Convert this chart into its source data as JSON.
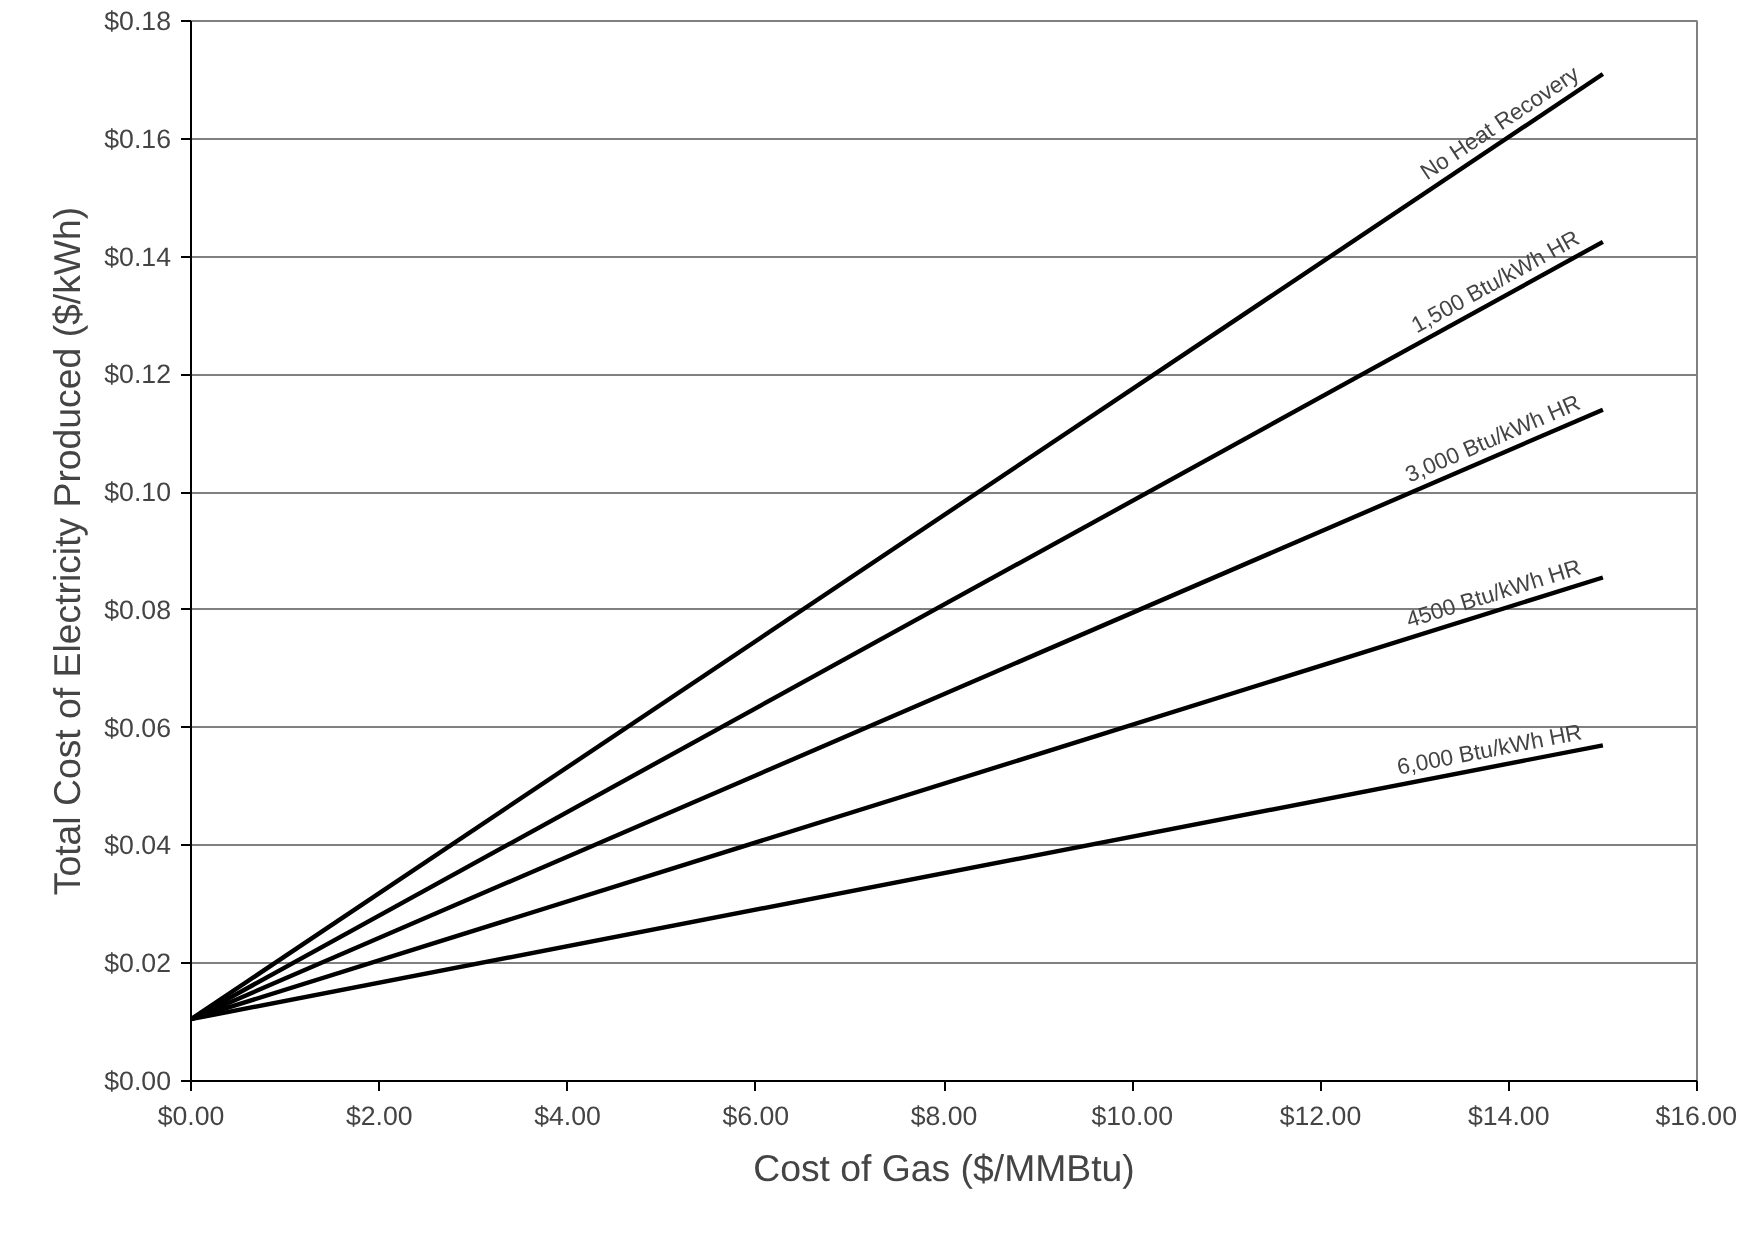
{
  "chart_data": {
    "type": "line",
    "xlabel": "Cost of Gas ($/MMBtu)",
    "ylabel": "Total Cost of Electricity Produced ($/kWh)",
    "x": [
      0,
      15
    ],
    "series": [
      {
        "name": "No Heat Recovery",
        "color": "#000000",
        "values": [
          0.0105,
          0.171
        ]
      },
      {
        "name": "1,500 Btu/kWh HR",
        "color": "#000000",
        "values": [
          0.0105,
          0.1425
        ]
      },
      {
        "name": "3,000 Btu/kWh HR",
        "color": "#000000",
        "values": [
          0.0105,
          0.114
        ]
      },
      {
        "name": "4500 Btu/kWh HR",
        "color": "#000000",
        "values": [
          0.0105,
          0.0855
        ]
      },
      {
        "name": "6,000 Btu/kWh HR",
        "color": "#000000",
        "values": [
          0.0105,
          0.057
        ]
      }
    ],
    "xlim": [
      0,
      16
    ],
    "xticks": [
      {
        "value": 0,
        "label": "$0.00"
      },
      {
        "value": 2,
        "label": "$2.00"
      },
      {
        "value": 4,
        "label": "$4.00"
      },
      {
        "value": 6,
        "label": "$6.00"
      },
      {
        "value": 8,
        "label": "$8.00"
      },
      {
        "value": 10,
        "label": "$10.00"
      },
      {
        "value": 12,
        "label": "$12.00"
      },
      {
        "value": 14,
        "label": "$14.00"
      },
      {
        "value": 16,
        "label": "$16.00"
      }
    ],
    "ylim": [
      0,
      0.18
    ],
    "yticks": [
      {
        "value": 0,
        "label": "$0.00"
      },
      {
        "value": 0.02,
        "label": "$0.02"
      },
      {
        "value": 0.04,
        "label": "$0.04"
      },
      {
        "value": 0.06,
        "label": "$0.06"
      },
      {
        "value": 0.08,
        "label": "$0.08"
      },
      {
        "value": 0.1,
        "label": "$0.10"
      },
      {
        "value": 0.12,
        "label": "$0.12"
      },
      {
        "value": 0.14,
        "label": "$0.14"
      },
      {
        "value": 0.16,
        "label": "$0.16"
      },
      {
        "value": 0.18,
        "label": "$0.18"
      }
    ],
    "grid": "y",
    "legend": false,
    "marker": "none",
    "line_style": "solid"
  }
}
